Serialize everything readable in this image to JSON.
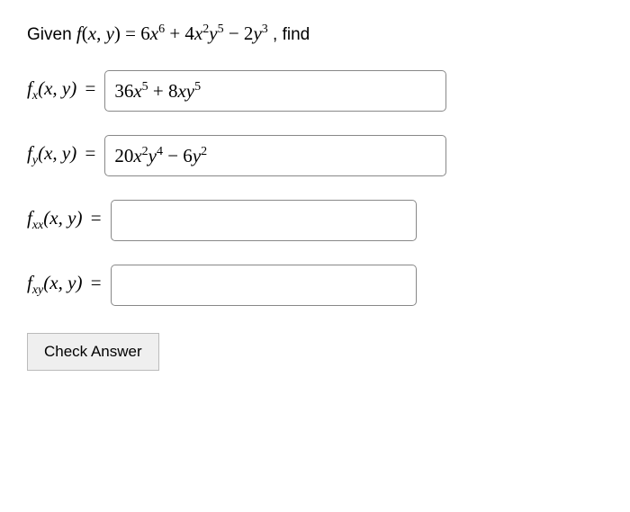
{
  "prompt": {
    "prefix": "Given  ",
    "func_lhs_html": "<span class='mathit'>f</span>(<span class='mathit'>x</span>, <span class='mathit'>y</span>) = 6<span class='mathit'>x</span><sup>6</sup> + 4<span class='mathit'>x</span><sup>2</sup><span class='mathit'>y</span><sup>5</sup> − 2<span class='mathit'>y</span><sup>3</sup>",
    "suffix": ",  find"
  },
  "rows": [
    {
      "label_html": "<span class='mathit'>f</span><span class='sub'><span class='mathit'>x</span></span>(<span class='mathit'>x</span>, <span class='mathit'>y</span>)",
      "value_html": "36<span class='mathit'>x</span><sup>5</sup> + 8<span class='mathit'>xy</span><sup>5</sup>",
      "filled": true
    },
    {
      "label_html": "<span class='mathit'>f</span><span class='sub'><span class='mathit'>y</span></span>(<span class='mathit'>x</span>, <span class='mathit'>y</span>)",
      "value_html": "20<span class='mathit'>x</span><sup>2</sup><span class='mathit'>y</span><sup>4</sup> − 6<span class='mathit'>y</span><sup>2</sup>",
      "filled": true
    },
    {
      "label_html": "<span class='mathit'>f</span><span class='sub'><span class='mathit'>xx</span></span>(<span class='mathit'>x</span>, <span class='mathit'>y</span>)",
      "value_html": "",
      "filled": false
    },
    {
      "label_html": "<span class='mathit'>f</span><span class='sub'><span class='mathit'>xy</span></span>(<span class='mathit'>x</span>, <span class='mathit'>y</span>)",
      "value_html": "",
      "filled": false
    }
  ],
  "button": {
    "label": "Check Answer"
  }
}
